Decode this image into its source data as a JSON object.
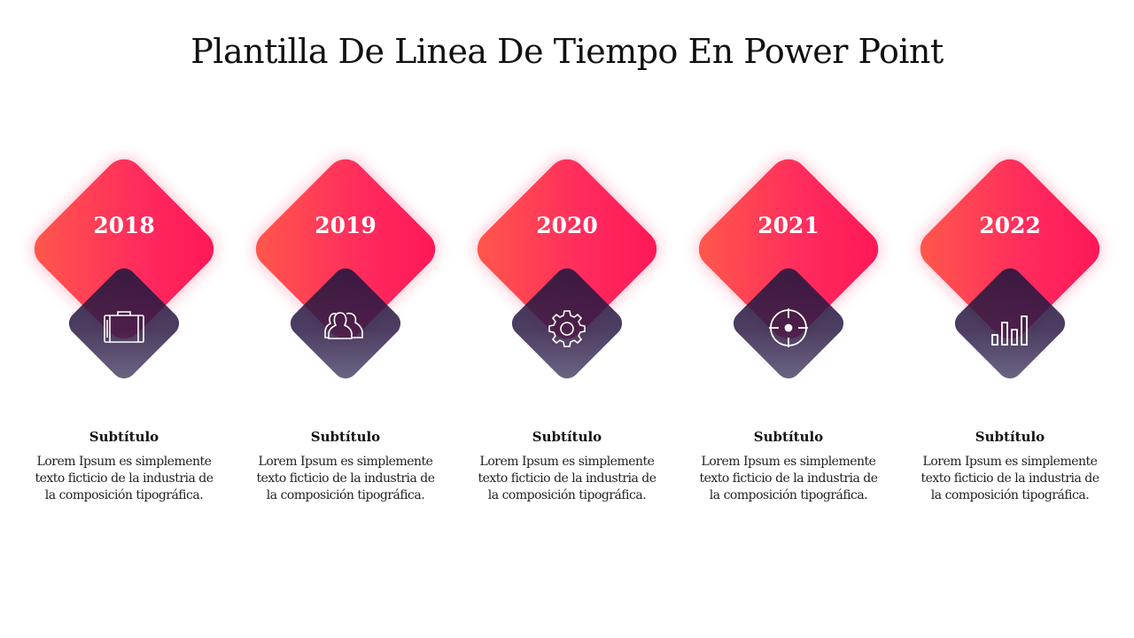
{
  "title": "Plantilla De Linea De Tiempo En Power Point",
  "colors": {
    "accent_gradient_start": "#ff5a4a",
    "accent_gradient_end": "#ff1557",
    "dark_diamond": "#2a1d4a"
  },
  "timeline": [
    {
      "year": "2018",
      "icon": "briefcase-icon",
      "subtitle": "Subtítulo",
      "text": "Lorem Ipsum es simplemente texto ficticio de la industria de la composición tipográfica."
    },
    {
      "year": "2019",
      "icon": "team-icon",
      "subtitle": "Subtítulo",
      "text": "Lorem Ipsum es simplemente texto ficticio de la industria de la composición tipográfica."
    },
    {
      "year": "2020",
      "icon": "gear-icon",
      "subtitle": "Subtítulo",
      "text": "Lorem Ipsum es simplemente texto ficticio de la industria de la composición tipográfica."
    },
    {
      "year": "2021",
      "icon": "target-icon",
      "subtitle": "Subtítulo",
      "text": "Lorem Ipsum es simplemente texto ficticio de la industria de la composición tipográfica."
    },
    {
      "year": "2022",
      "icon": "bar-chart-icon",
      "subtitle": "Subtítulo",
      "text": "Lorem Ipsum es simplemente texto ficticio de la industria de la composición tipográfica."
    }
  ]
}
